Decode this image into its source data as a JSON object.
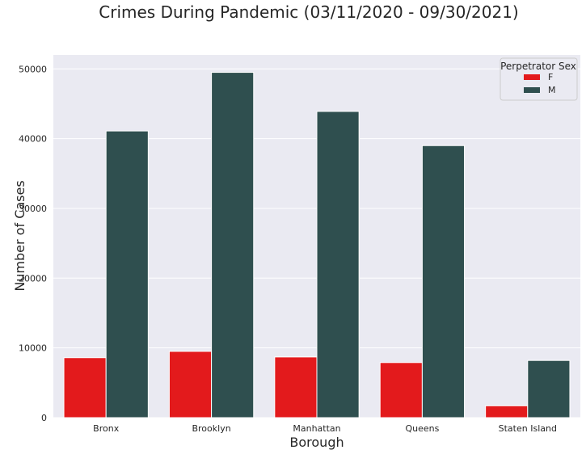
{
  "chart_data": {
    "type": "bar",
    "title": "Crimes During Pandemic (03/11/2020 - 09/30/2021)",
    "xlabel": "Borough",
    "ylabel": "Number of Cases",
    "categories": [
      "Bronx",
      "Brooklyn",
      "Manhattan",
      "Queens",
      "Staten Island"
    ],
    "series": [
      {
        "name": "F",
        "color": "#e31a1c",
        "values": [
          8600,
          9500,
          8700,
          7900,
          1700
        ]
      },
      {
        "name": "M",
        "color": "#2f4f4f",
        "values": [
          41100,
          49500,
          43900,
          39000,
          8200
        ]
      }
    ],
    "ylim": [
      0,
      52000
    ],
    "yticks": [
      0,
      10000,
      20000,
      30000,
      40000,
      50000
    ],
    "grid": true,
    "legend": {
      "title": "Perpetrator Sex",
      "placement": "top-right"
    },
    "colors": {
      "plot_background": "#eaeaf2",
      "grid": "#ffffff",
      "text": "#262626"
    }
  }
}
